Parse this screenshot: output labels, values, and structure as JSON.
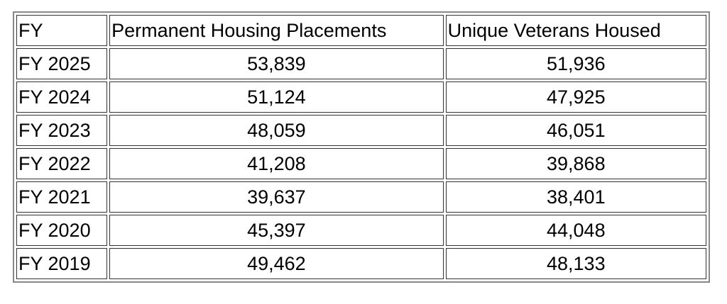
{
  "table": {
    "header": [
      "FY",
      "Permanent Housing Placements",
      "Unique Veterans Housed"
    ],
    "rows": [
      [
        "FY 2025",
        "53,839",
        "51,936"
      ],
      [
        "FY 2024",
        "51,124",
        "47,925"
      ],
      [
        "FY 2023",
        "48,059",
        "46,051"
      ],
      [
        "FY 2022",
        "41,208",
        "39,868"
      ],
      [
        "FY 2021",
        "39,637",
        "38,401"
      ],
      [
        "FY 2020",
        "45,397",
        "44,048"
      ],
      [
        "FY 2019",
        "49,462",
        "48,133"
      ]
    ]
  }
}
